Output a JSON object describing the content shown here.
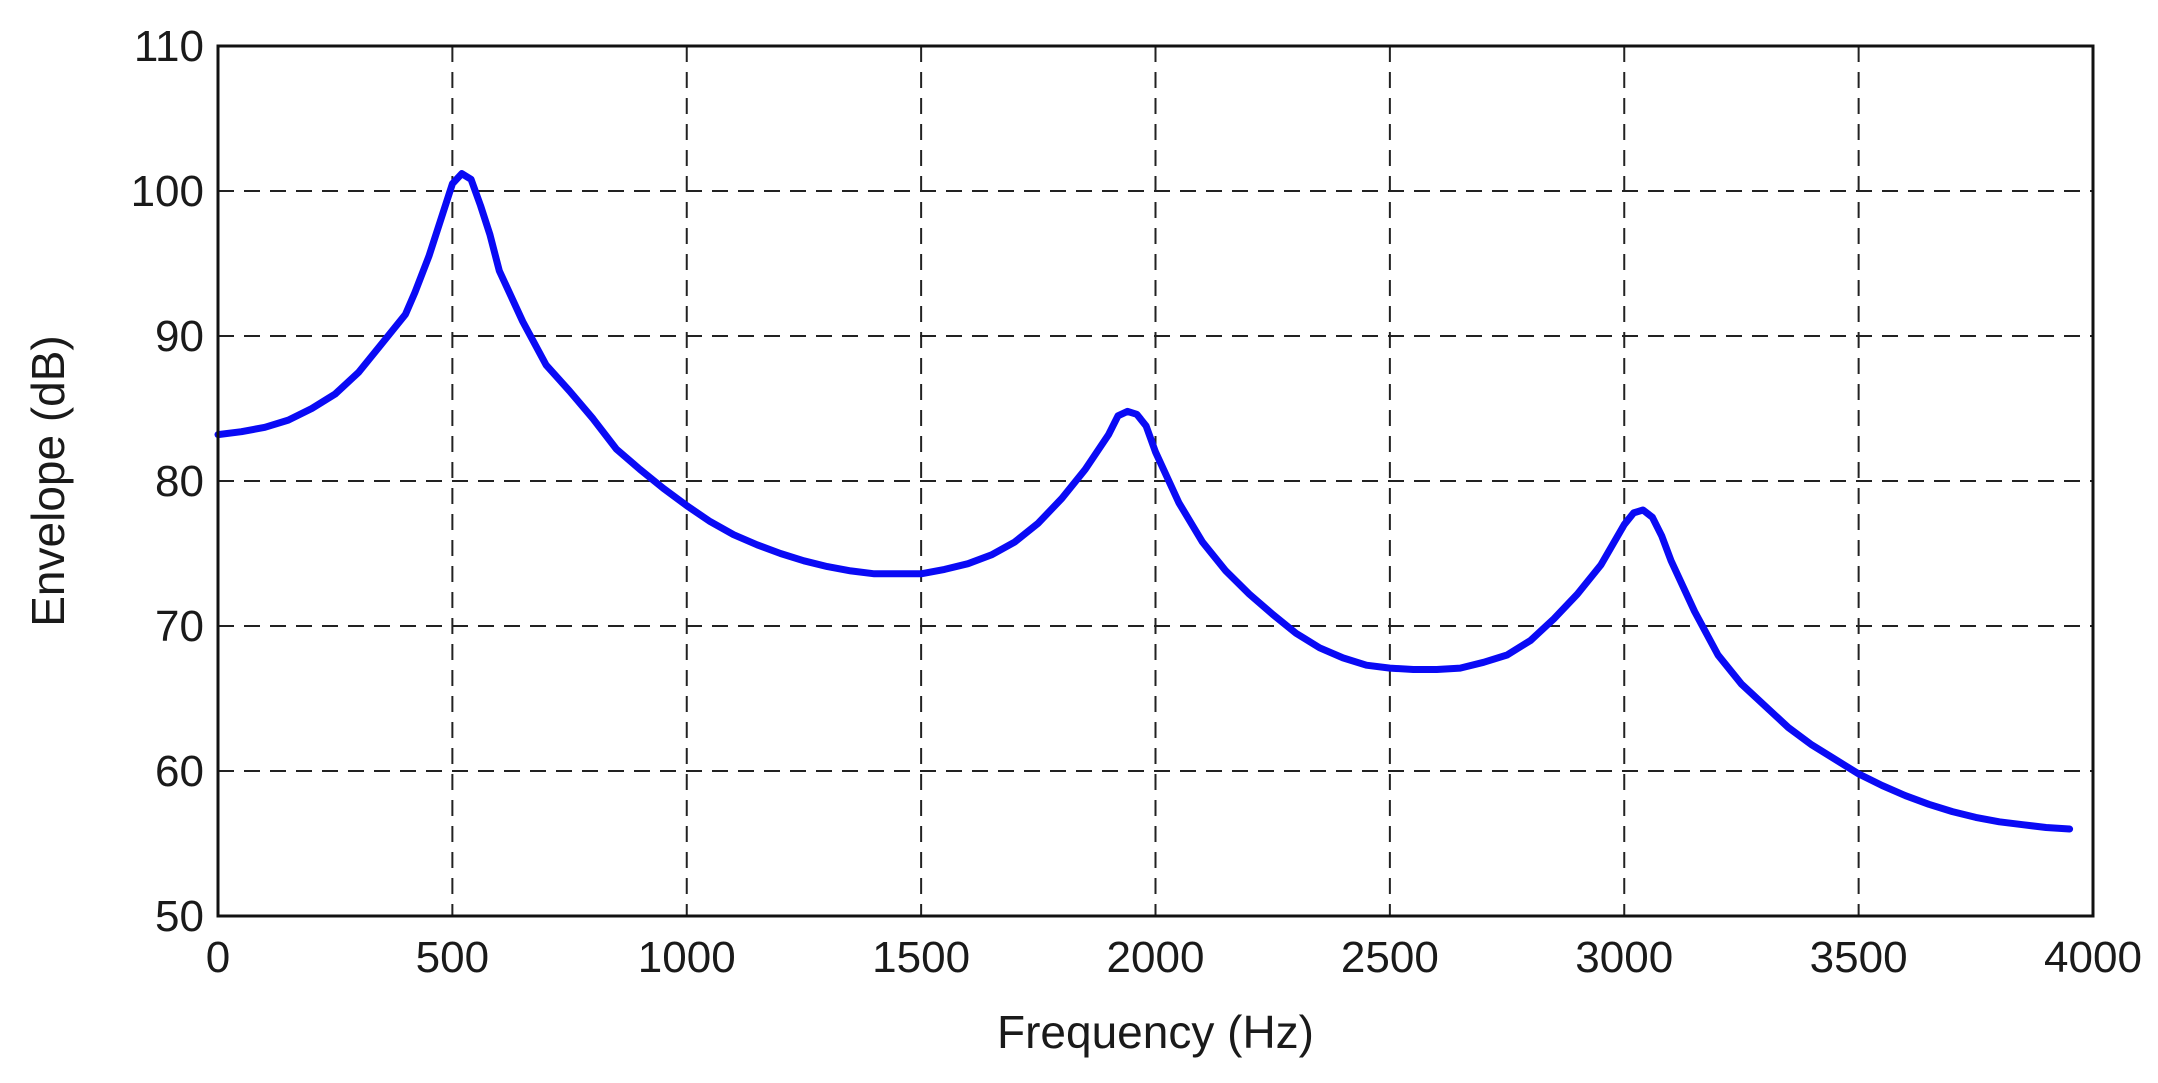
{
  "chart_data": {
    "type": "line",
    "title": "",
    "xlabel": "Frequency (Hz)",
    "ylabel": "Envelope (dB)",
    "xlim": [
      0,
      4000
    ],
    "ylim": [
      50,
      110
    ],
    "xticks": [
      0,
      500,
      1000,
      1500,
      2000,
      2500,
      3000,
      3500,
      4000
    ],
    "yticks": [
      50,
      60,
      70,
      80,
      90,
      100,
      110
    ],
    "xtick_labels": [
      "0",
      "500",
      "1000",
      "1500",
      "2000",
      "2500",
      "3000",
      "3500",
      "4000"
    ],
    "ytick_labels": [
      "50",
      "60",
      "70",
      "80",
      "90",
      "100",
      "110"
    ],
    "grid": true,
    "legend": "none",
    "series": [
      {
        "color": "#0a0af5",
        "x": [
          0,
          50,
          100,
          150,
          200,
          250,
          300,
          350,
          400,
          420,
          450,
          480,
          500,
          520,
          540,
          560,
          580,
          600,
          650,
          700,
          750,
          800,
          850,
          900,
          950,
          1000,
          1050,
          1100,
          1150,
          1200,
          1250,
          1300,
          1350,
          1400,
          1450,
          1500,
          1550,
          1600,
          1650,
          1700,
          1750,
          1800,
          1850,
          1900,
          1920,
          1940,
          1960,
          1980,
          2000,
          2050,
          2100,
          2150,
          2200,
          2250,
          2300,
          2350,
          2400,
          2450,
          2500,
          2550,
          2600,
          2650,
          2700,
          2750,
          2800,
          2850,
          2900,
          2950,
          3000,
          3020,
          3040,
          3060,
          3080,
          3100,
          3150,
          3200,
          3250,
          3300,
          3350,
          3400,
          3450,
          3500,
          3550,
          3600,
          3650,
          3700,
          3750,
          3800,
          3850,
          3900,
          3950
        ],
        "y": [
          83.2,
          83.4,
          83.7,
          84.2,
          85,
          86,
          87.5,
          89.5,
          91.5,
          93,
          95.5,
          98.5,
          100.5,
          101.2,
          100.8,
          99,
          97,
          94.5,
          91,
          88,
          86.2,
          84.3,
          82.2,
          80.8,
          79.5,
          78.3,
          77.2,
          76.3,
          75.6,
          75,
          74.5,
          74.1,
          73.8,
          73.6,
          73.6,
          73.6,
          73.9,
          74.3,
          74.9,
          75.8,
          77.1,
          78.8,
          80.8,
          83.2,
          84.5,
          84.8,
          84.6,
          83.8,
          82,
          78.5,
          75.8,
          73.8,
          72.2,
          70.8,
          69.5,
          68.5,
          67.8,
          67.3,
          67.1,
          67,
          67,
          67.1,
          67.5,
          68,
          69,
          70.5,
          72.2,
          74.2,
          77,
          77.8,
          78,
          77.5,
          76.2,
          74.5,
          71,
          68,
          66,
          64.5,
          63,
          61.8,
          60.8,
          59.8,
          59,
          58.3,
          57.7,
          57.2,
          56.8,
          56.5,
          56.3,
          56.1,
          56
        ]
      }
    ]
  }
}
